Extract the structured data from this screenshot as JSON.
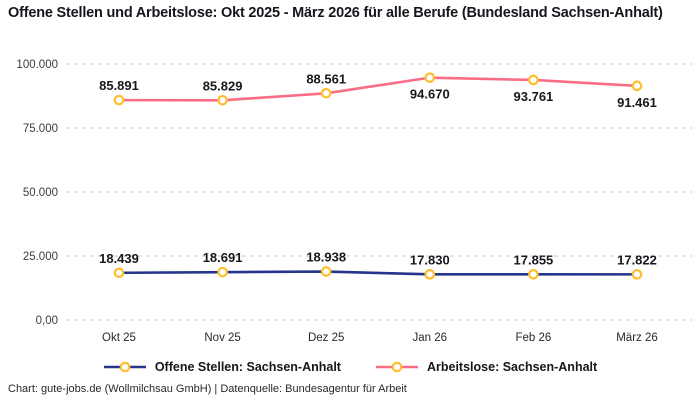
{
  "header": {
    "title": "Offene Stellen und Arbeitslose: Okt 2025 - März 2026 für alle Berufe (Bundesland Sachsen-Anhalt)"
  },
  "chart_data": {
    "type": "line",
    "title": "Offene Stellen und Arbeitslose: Okt 2025 - März 2026 für alle Berufe (Bundesland Sachsen-Anhalt)",
    "categories": [
      "Okt 25",
      "Nov 25",
      "Dez 25",
      "Jan 26",
      "Feb 26",
      "März 26"
    ],
    "series": [
      {
        "name": "Offene Stellen: Sachsen-Anhalt",
        "color": "#27348B",
        "values": [
          18439,
          18691,
          18938,
          17830,
          17855,
          17822
        ],
        "value_labels": [
          "18.439",
          "18.691",
          "18.938",
          "17.830",
          "17.855",
          "17.822"
        ],
        "label_positions": [
          "above",
          "above",
          "above",
          "above",
          "above",
          "above"
        ]
      },
      {
        "name": "Arbeitslose: Sachsen-Anhalt",
        "color": "#F96E86",
        "values": [
          85891,
          85829,
          88561,
          94670,
          93761,
          91461
        ],
        "value_labels": [
          "85.891",
          "85.829",
          "88.561",
          "94.670",
          "93.761",
          "91.461"
        ],
        "label_positions": [
          "above",
          "above",
          "above",
          "below",
          "below",
          "below"
        ]
      }
    ],
    "marker": {
      "fill": "#FFFFFF",
      "stroke": "#FFBE2D"
    },
    "yticks": [
      {
        "value": 0,
        "label": "0,00"
      },
      {
        "value": 25000,
        "label": "25.000"
      },
      {
        "value": 50000,
        "label": "50.000"
      },
      {
        "value": 75000,
        "label": "75.000"
      },
      {
        "value": 100000,
        "label": "100.000"
      }
    ],
    "ylim": [
      0,
      100000
    ],
    "xlabel": "",
    "ylabel": "",
    "grid": "horizontal-dashed",
    "grid_color": "#c9c9c9",
    "legend_position": "bottom-center"
  },
  "footer": {
    "credit": "Chart: gute-jobs.de (Wollmilchsau GmbH) | Datenquelle: Bundesagentur für Arbeit"
  }
}
